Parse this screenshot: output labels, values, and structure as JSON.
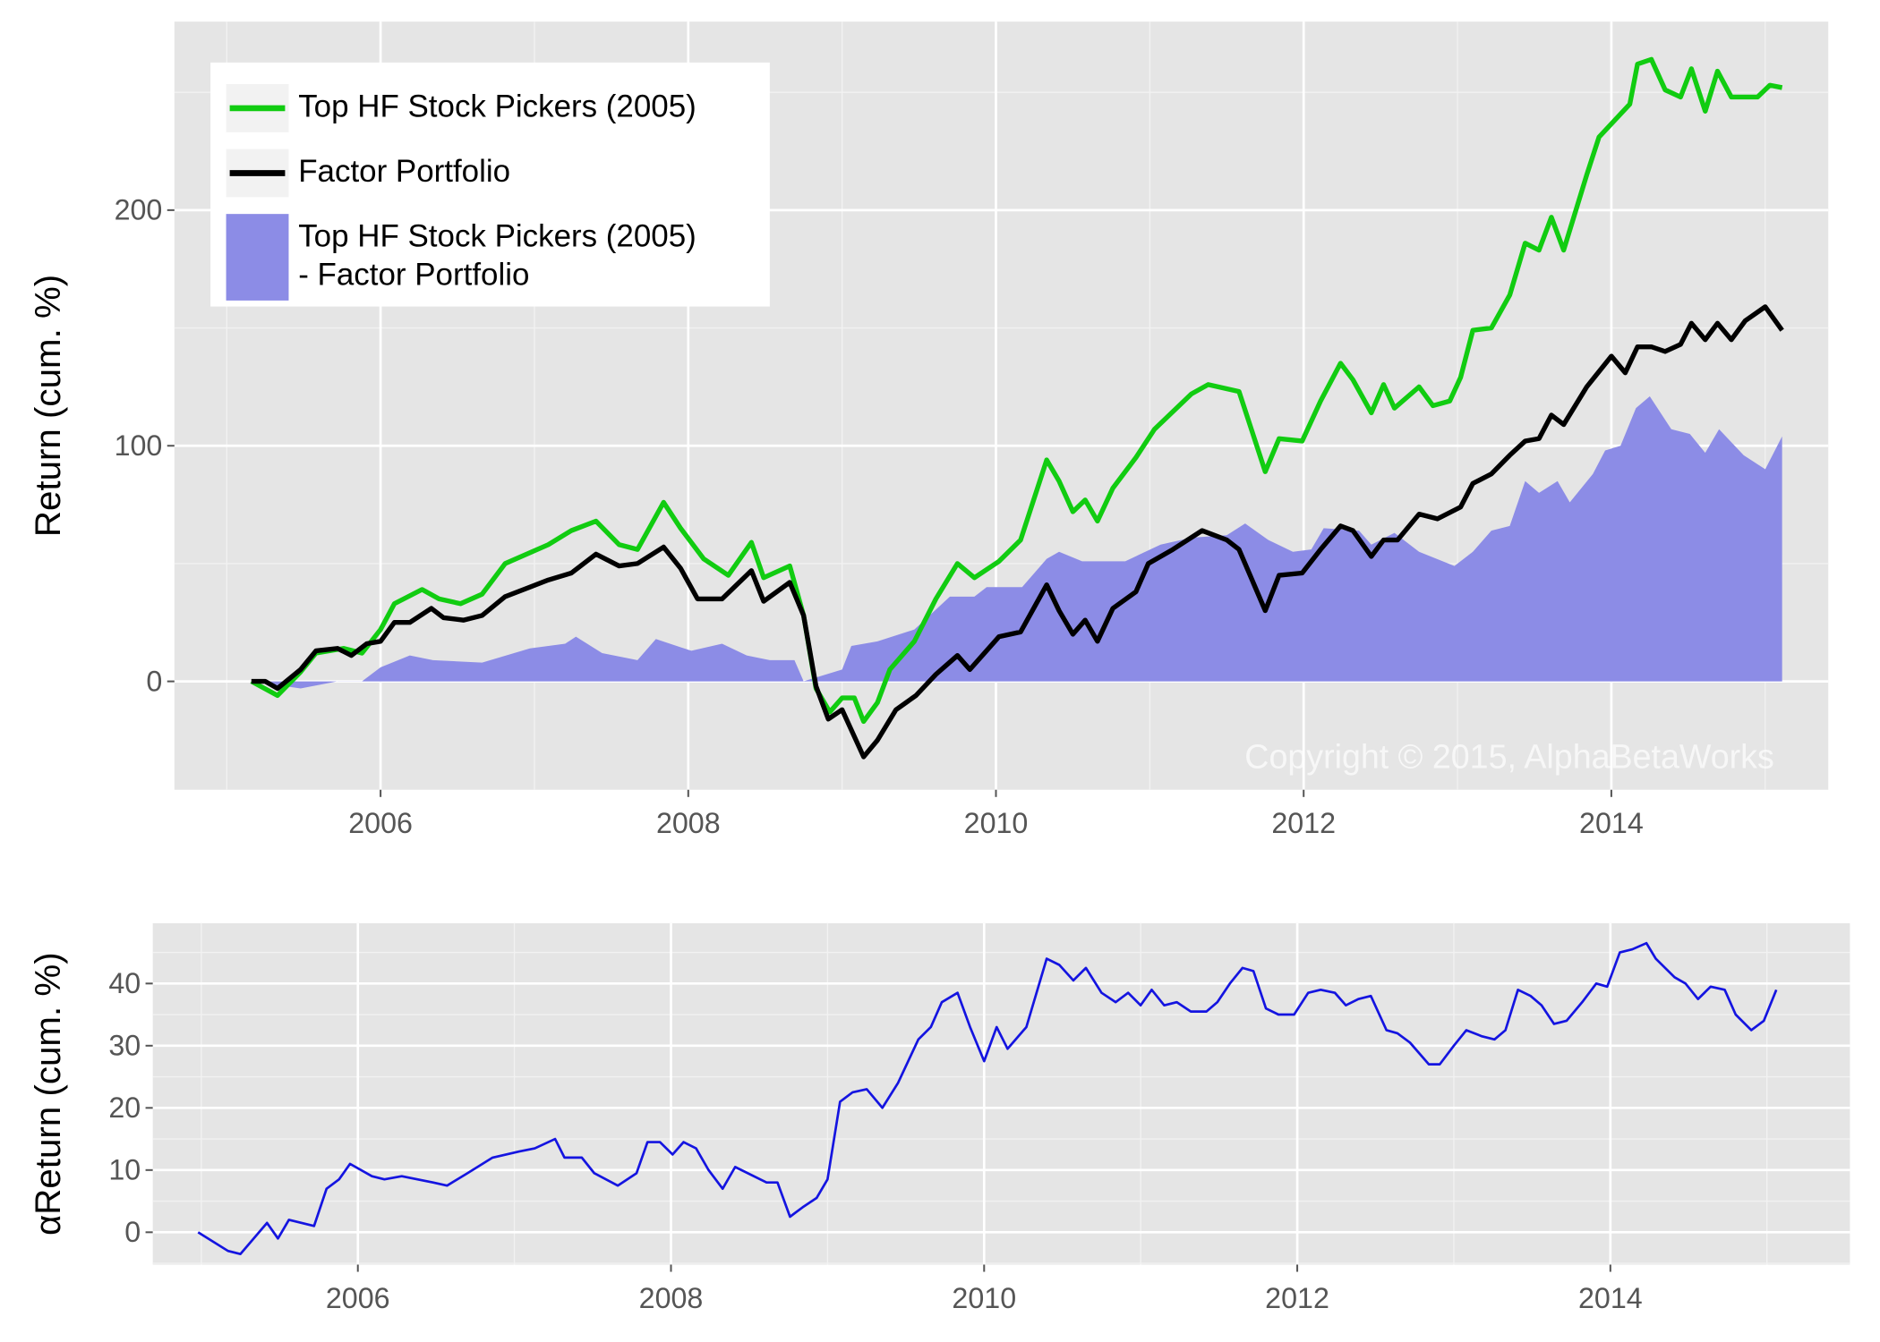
{
  "chart_data": [
    {
      "type": "line",
      "ylabel": "Return (cum. %)",
      "xlim": [
        2004.66,
        2015.41
      ],
      "ylim": [
        -46,
        280
      ],
      "xticks": [
        2006,
        2008,
        2010,
        2012,
        2014
      ],
      "yticks": [
        0,
        100,
        200
      ],
      "grid": true,
      "legend": "top-left",
      "annotation": "Copyright © 2015, AlphaBetaWorks",
      "series": [
        {
          "name": "Top HF Stock Pickers (2005)",
          "color": "#11cc11",
          "x": [
            2005.16,
            2005.33,
            2005.48,
            2005.58,
            2005.76,
            2005.88,
            2006.0,
            2006.09,
            2006.27,
            2006.38,
            2006.52,
            2006.66,
            2006.81,
            2007.09,
            2007.24,
            2007.4,
            2007.55,
            2007.67,
            2007.84,
            2007.95,
            2008.1,
            2008.26,
            2008.41,
            2008.49,
            2008.66,
            2008.75,
            2008.83,
            2008.92,
            2009.0,
            2009.08,
            2009.14,
            2009.23,
            2009.31,
            2009.47,
            2009.61,
            2009.75,
            2009.86,
            2010.02,
            2010.16,
            2010.33,
            2010.41,
            2010.5,
            2010.58,
            2010.66,
            2010.76,
            2010.91,
            2011.03,
            2011.27,
            2011.38,
            2011.58,
            2011.75,
            2011.84,
            2011.99,
            2012.11,
            2012.24,
            2012.32,
            2012.44,
            2012.52,
            2012.59,
            2012.75,
            2012.84,
            2012.95,
            2013.02,
            2013.1,
            2013.22,
            2013.34,
            2013.44,
            2013.53,
            2013.61,
            2013.69,
            2013.84,
            2013.92,
            2014.12,
            2014.17,
            2014.26,
            2014.35,
            2014.45,
            2014.52,
            2014.61,
            2014.69,
            2014.78,
            2014.95,
            2015.03,
            2015.11
          ],
          "values": [
            0,
            -6,
            4,
            12,
            14,
            12,
            22,
            33,
            39,
            35,
            33,
            37,
            50,
            58,
            64,
            68,
            58,
            56,
            76,
            65,
            52,
            45,
            59,
            44,
            49,
            28,
            -3,
            -13,
            -7,
            -7,
            -17,
            -9,
            5,
            17,
            35,
            50,
            44,
            51,
            60,
            94,
            85,
            72,
            77,
            68,
            82,
            95,
            107,
            122,
            126,
            123,
            89,
            103,
            102,
            119,
            135,
            128,
            114,
            126,
            116,
            125,
            117,
            119,
            129,
            149,
            150,
            164,
            186,
            183,
            197,
            183,
            215,
            231,
            245,
            262,
            264,
            251,
            248,
            260,
            242,
            259,
            248,
            248,
            253,
            252
          ]
        },
        {
          "name": "Factor Portfolio",
          "color": "#000000",
          "x": [
            2005.16,
            2005.25,
            2005.33,
            2005.48,
            2005.58,
            2005.72,
            2005.81,
            2005.91,
            2006.0,
            2006.09,
            2006.19,
            2006.33,
            2006.41,
            2006.54,
            2006.66,
            2006.81,
            2006.97,
            2007.09,
            2007.24,
            2007.4,
            2007.55,
            2007.67,
            2007.84,
            2007.95,
            2008.06,
            2008.22,
            2008.41,
            2008.49,
            2008.66,
            2008.75,
            2008.83,
            2008.91,
            2009.0,
            2009.14,
            2009.23,
            2009.35,
            2009.48,
            2009.61,
            2009.75,
            2009.83,
            2010.02,
            2010.16,
            2010.33,
            2010.41,
            2010.5,
            2010.58,
            2010.66,
            2010.76,
            2010.91,
            2010.99,
            2011.15,
            2011.34,
            2011.5,
            2011.58,
            2011.75,
            2011.84,
            2011.99,
            2012.11,
            2012.24,
            2012.32,
            2012.44,
            2012.52,
            2012.61,
            2012.75,
            2012.87,
            2013.02,
            2013.1,
            2013.22,
            2013.34,
            2013.44,
            2013.53,
            2013.61,
            2013.69,
            2013.84,
            2014.0,
            2014.09,
            2014.17,
            2014.26,
            2014.35,
            2014.45,
            2014.52,
            2014.61,
            2014.69,
            2014.78,
            2014.87,
            2015.0,
            2015.11
          ],
          "values": [
            0,
            0,
            -3,
            5,
            13,
            14,
            11,
            16,
            17,
            25,
            25,
            31,
            27,
            26,
            28,
            36,
            40,
            43,
            46,
            54,
            49,
            50,
            57,
            48,
            35,
            35,
            47,
            34,
            42,
            28,
            -2,
            -16,
            -12,
            -32,
            -25,
            -12,
            -6,
            3,
            11,
            5,
            19,
            21,
            41,
            30,
            20,
            26,
            17,
            31,
            38,
            50,
            56,
            64,
            60,
            56,
            30,
            45,
            46,
            56,
            66,
            64,
            53,
            60,
            60,
            71,
            69,
            74,
            84,
            88,
            96,
            102,
            103,
            113,
            109,
            125,
            138,
            131,
            142,
            142,
            140,
            143,
            152,
            145,
            152,
            145,
            153,
            159,
            149
          ]
        },
        {
          "name": "Top HF Stock Pickers (2005)\n- Factor Portfolio",
          "color": "#8c8ce6",
          "type": "area",
          "x": [
            2005.16,
            2005.48,
            2005.72,
            2005.88,
            2006.0,
            2006.19,
            2006.34,
            2006.66,
            2006.97,
            2007.2,
            2007.27,
            2007.44,
            2007.67,
            2007.79,
            2008.02,
            2008.22,
            2008.38,
            2008.53,
            2008.69,
            2008.75,
            2009.0,
            2009.06,
            2009.23,
            2009.47,
            2009.7,
            2009.86,
            2009.94,
            2010.17,
            2010.33,
            2010.41,
            2010.56,
            2010.84,
            2011.07,
            2011.27,
            2011.5,
            2011.62,
            2011.77,
            2011.93,
            2012.05,
            2012.13,
            2012.36,
            2012.44,
            2012.59,
            2012.75,
            2012.98,
            2013.1,
            2013.22,
            2013.34,
            2013.44,
            2013.53,
            2013.65,
            2013.73,
            2013.88,
            2013.96,
            2014.06,
            2014.16,
            2014.25,
            2014.39,
            2014.51,
            2014.61,
            2014.7,
            2014.86,
            2015.0,
            2015.11
          ],
          "values": [
            0,
            -3,
            0,
            0,
            6,
            11,
            9,
            8,
            14,
            16,
            19,
            12,
            9,
            18,
            13,
            16,
            11,
            9,
            9,
            0,
            5,
            15,
            17,
            22,
            36,
            36,
            40,
            40,
            52,
            55,
            51,
            51,
            58,
            61,
            62,
            67,
            60,
            55,
            56,
            65,
            64,
            58,
            63,
            55,
            49,
            55,
            64,
            66,
            85,
            80,
            85,
            76,
            88,
            98,
            100,
            116,
            121,
            107,
            105,
            97,
            107,
            96,
            90,
            104
          ]
        }
      ]
    },
    {
      "type": "line",
      "ylabel": "αReturn (cum. %)",
      "xlim": [
        2004.69,
        2015.53
      ],
      "ylim": [
        -5.2,
        49.7
      ],
      "xticks": [
        2006,
        2008,
        2010,
        2012,
        2014
      ],
      "yticks": [
        0,
        10,
        20,
        30,
        40
      ],
      "grid": true,
      "series": [
        {
          "color": "#1414e0",
          "x": [
            2004.98,
            2005.17,
            2005.25,
            2005.42,
            2005.49,
            2005.56,
            2005.72,
            2005.8,
            2005.88,
            2005.95,
            2006.09,
            2006.17,
            2006.28,
            2006.48,
            2006.57,
            2006.7,
            2006.86,
            2007.03,
            2007.13,
            2007.26,
            2007.32,
            2007.43,
            2007.51,
            2007.66,
            2007.78,
            2007.85,
            2007.93,
            2008.01,
            2008.08,
            2008.16,
            2008.24,
            2008.33,
            2008.41,
            2008.61,
            2008.68,
            2008.76,
            2008.84,
            2008.93,
            2009.0,
            2009.08,
            2009.16,
            2009.25,
            2009.35,
            2009.45,
            2009.58,
            2009.66,
            2009.73,
            2009.83,
            2009.91,
            2010.0,
            2010.08,
            2010.15,
            2010.27,
            2010.4,
            2010.48,
            2010.57,
            2010.65,
            2010.75,
            2010.84,
            2010.92,
            2011.0,
            2011.07,
            2011.15,
            2011.23,
            2011.32,
            2011.42,
            2011.49,
            2011.57,
            2011.65,
            2011.72,
            2011.8,
            2011.88,
            2011.98,
            2012.07,
            2012.15,
            2012.24,
            2012.31,
            2012.39,
            2012.47,
            2012.57,
            2012.64,
            2012.72,
            2012.84,
            2012.91,
            2013.0,
            2013.08,
            2013.18,
            2013.26,
            2013.33,
            2013.41,
            2013.49,
            2013.56,
            2013.64,
            2013.72,
            2013.82,
            2013.91,
            2013.98,
            2014.06,
            2014.14,
            2014.23,
            2014.29,
            2014.41,
            2014.48,
            2014.56,
            2014.64,
            2014.73,
            2014.8,
            2014.9,
            2014.98,
            2015.06
          ],
          "values": [
            0,
            -3,
            -3.5,
            1.5,
            -1,
            2,
            1,
            7,
            8.5,
            11,
            9,
            8.5,
            9,
            8,
            7.5,
            9.5,
            12,
            13,
            13.5,
            15,
            12,
            12,
            9.5,
            7.5,
            9.5,
            14.5,
            14.5,
            12.5,
            14.5,
            13.5,
            10,
            7,
            10.5,
            8,
            8,
            2.5,
            4,
            5.5,
            8.5,
            21,
            22.5,
            23,
            20,
            24,
            31,
            33,
            37,
            38.5,
            33,
            27.5,
            33,
            29.5,
            33,
            44,
            43,
            40.5,
            42.5,
            38.5,
            37,
            38.5,
            36.5,
            39,
            36.5,
            37,
            35.5,
            35.5,
            37,
            40,
            42.5,
            42,
            36,
            35,
            35,
            38.5,
            39,
            38.5,
            36.5,
            37.5,
            38,
            32.5,
            32,
            30.5,
            27,
            27,
            30,
            32.5,
            31.5,
            31,
            32.5,
            39,
            38,
            36.5,
            33.5,
            34,
            37,
            40,
            39.5,
            45,
            45.5,
            46.5,
            44,
            41,
            40,
            37.5,
            39.5,
            39,
            35,
            32.5,
            34,
            39
          ]
        }
      ]
    }
  ]
}
